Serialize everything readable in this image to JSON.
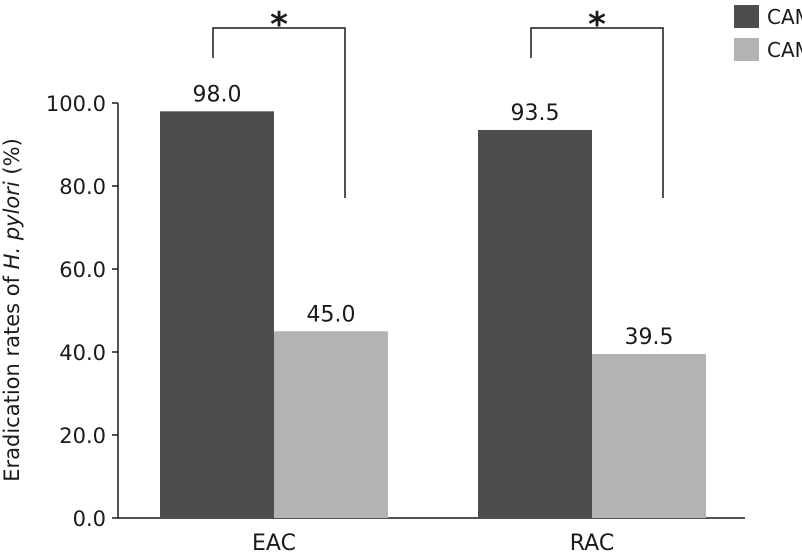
{
  "chart_data": {
    "type": "bar",
    "title": "",
    "xlabel": "",
    "ylabel": "Eradication rates of H. pylori (%)",
    "ylabel_parts": {
      "pre": "Eradication rates of ",
      "italic": "H. pylori",
      "post": " (%)"
    },
    "ylim": [
      0,
      100
    ],
    "yticks": [
      "0.0",
      "20.0",
      "40.0",
      "60.0",
      "80.0",
      "100.0"
    ],
    "ytick_values": [
      0,
      20,
      40,
      60,
      80,
      100
    ],
    "categories": [
      "EAC",
      "RAC"
    ],
    "series": [
      {
        "name": "CAM-S",
        "color": "#4d4d4d",
        "values": [
          98.0,
          93.5
        ],
        "labels": [
          "98.0",
          "93.5"
        ]
      },
      {
        "name": "CAM-R",
        "color": "#b3b3b3",
        "values": [
          45.0,
          39.5
        ],
        "labels": [
          "45.0",
          "39.5"
        ]
      }
    ],
    "significance": [
      "*",
      "*"
    ],
    "legend_position": "top-right",
    "grid": false
  }
}
